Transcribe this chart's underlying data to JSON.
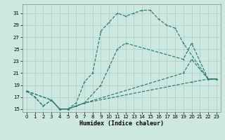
{
  "background_color": "#cde8e0",
  "grid_color": "#aaccC4",
  "line_color": "#2a7a6e",
  "xlabel": "Humidex (Indice chaleur)",
  "xlim": [
    -0.5,
    23.5
  ],
  "ylim": [
    14.5,
    32.5
  ],
  "xticks": [
    0,
    1,
    2,
    3,
    4,
    5,
    6,
    7,
    8,
    9,
    10,
    11,
    12,
    13,
    14,
    15,
    16,
    17,
    18,
    19,
    20,
    21,
    22,
    23
  ],
  "yticks": [
    15,
    17,
    19,
    21,
    23,
    25,
    27,
    29,
    31
  ],
  "curve1_x": [
    0,
    1,
    2,
    3,
    4,
    5,
    6,
    7,
    8,
    9,
    10,
    11,
    12,
    13,
    14,
    15,
    16,
    17,
    18,
    19,
    22,
    23
  ],
  "curve1_y": [
    18,
    17,
    15.5,
    16.5,
    15,
    15,
    16,
    19.5,
    21,
    28,
    29.5,
    31,
    30.5,
    31,
    31.5,
    31.5,
    30,
    29,
    28.5,
    26,
    20,
    20
  ],
  "curve2_x": [
    0,
    1,
    2,
    3,
    4,
    5,
    6,
    7,
    9,
    10,
    11,
    12,
    19,
    20,
    22,
    23
  ],
  "curve2_y": [
    18,
    17,
    15.5,
    16.5,
    15,
    15,
    15.5,
    16,
    19,
    22,
    25,
    26,
    23.3,
    26,
    20,
    20
  ],
  "curve3_x": [
    0,
    3,
    4,
    5,
    6,
    7,
    19,
    20,
    22,
    23
  ],
  "curve3_y": [
    18,
    16.5,
    15,
    15,
    15.5,
    16,
    21,
    23.3,
    20,
    20
  ],
  "curve4_x": [
    0,
    3,
    4,
    5,
    6,
    7,
    20,
    22,
    23
  ],
  "curve4_y": [
    18,
    16.5,
    15,
    15,
    15.5,
    16,
    19.5,
    20,
    20
  ]
}
